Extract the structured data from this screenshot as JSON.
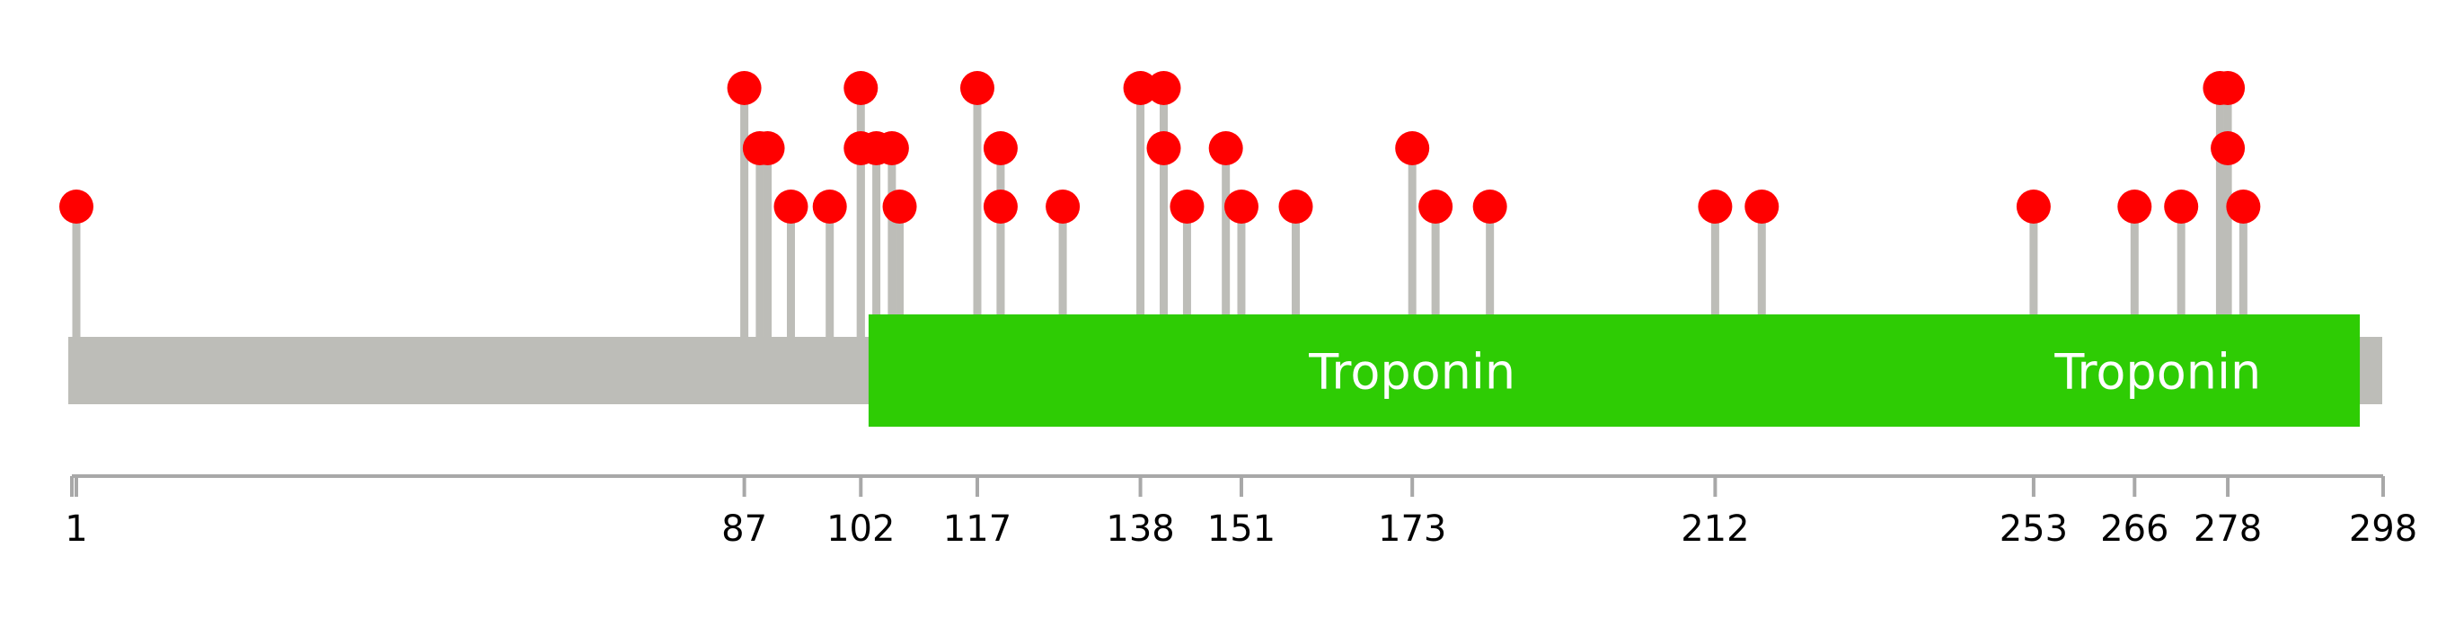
{
  "chart_data": {
    "type": "lollipop",
    "title": "",
    "xlabel": "",
    "ylabel": "",
    "sequence_length": 298,
    "xlim": [
      1,
      298
    ],
    "axis_ticks": [
      1,
      87,
      102,
      117,
      138,
      151,
      173,
      212,
      253,
      266,
      278,
      298
    ],
    "domains": [
      {
        "label": "Troponin",
        "start": 103,
        "end": 295,
        "label_position": 173,
        "color": "#2ecc04"
      },
      {
        "label": "Troponin",
        "start": 103,
        "end": 295,
        "label_position": 269,
        "color": "#2ecc04"
      }
    ],
    "mutations": [
      {
        "position": 1,
        "count": 1
      },
      {
        "position": 87,
        "count": 3
      },
      {
        "position": 89,
        "count": 2
      },
      {
        "position": 90,
        "count": 2
      },
      {
        "position": 93,
        "count": 1
      },
      {
        "position": 98,
        "count": 1
      },
      {
        "position": 102,
        "count": 2
      },
      {
        "position": 102,
        "count": 3
      },
      {
        "position": 104,
        "count": 2
      },
      {
        "position": 106,
        "count": 2
      },
      {
        "position": 107,
        "count": 1
      },
      {
        "position": 117,
        "count": 3
      },
      {
        "position": 120,
        "count": 2
      },
      {
        "position": 120,
        "count": 1
      },
      {
        "position": 128,
        "count": 1
      },
      {
        "position": 138,
        "count": 3
      },
      {
        "position": 141,
        "count": 3
      },
      {
        "position": 141,
        "count": 2
      },
      {
        "position": 144,
        "count": 1
      },
      {
        "position": 149,
        "count": 2
      },
      {
        "position": 151,
        "count": 1
      },
      {
        "position": 158,
        "count": 1
      },
      {
        "position": 173,
        "count": 2
      },
      {
        "position": 176,
        "count": 1
      },
      {
        "position": 183,
        "count": 1
      },
      {
        "position": 212,
        "count": 1
      },
      {
        "position": 218,
        "count": 1
      },
      {
        "position": 253,
        "count": 1
      },
      {
        "position": 266,
        "count": 1
      },
      {
        "position": 272,
        "count": 1
      },
      {
        "position": 277,
        "count": 3
      },
      {
        "position": 278,
        "count": 3
      },
      {
        "position": 278,
        "count": 2
      },
      {
        "position": 280,
        "count": 1
      }
    ],
    "colors": {
      "backbone": "#bdbdb8",
      "stem": "#bdbdb8",
      "marker": "#ff0000",
      "domain": "#2ecc04",
      "axis": "#a8a8a8"
    }
  }
}
